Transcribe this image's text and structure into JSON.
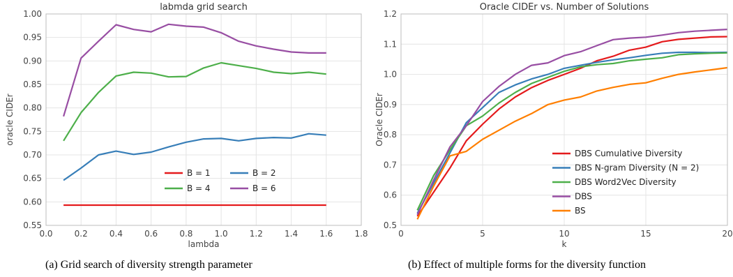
{
  "captions": {
    "a": "(a) Grid search of diversity strength parameter",
    "b": "(b) Effect of multiple forms for the diversity function"
  },
  "chart_data": [
    {
      "type": "line",
      "title": "labmda grid search",
      "xlabel": "lambda",
      "ylabel": "oracle CIDEr",
      "xlim": [
        0.0,
        1.8
      ],
      "ylim": [
        0.55,
        1.0
      ],
      "xticks": [
        0.0,
        0.2,
        0.4,
        0.6,
        0.8,
        1.0,
        1.2,
        1.4,
        1.6,
        1.8
      ],
      "yticks": [
        0.55,
        0.6,
        0.65,
        0.7,
        0.75,
        0.8,
        0.85,
        0.9,
        0.95,
        1.0
      ],
      "xtick_labels": [
        "0.0",
        "0.2",
        "0.4",
        "0.6",
        "0.8",
        "1.0",
        "1.2",
        "1.4",
        "1.6",
        "1.8"
      ],
      "ytick_labels": [
        "0.55",
        "0.60",
        "0.65",
        "0.70",
        "0.75",
        "0.80",
        "0.85",
        "0.90",
        "0.95",
        "1.00"
      ],
      "grid": true,
      "legend_position": "lower-center, two columns",
      "x": [
        0.1,
        0.2,
        0.3,
        0.4,
        0.5,
        0.6,
        0.7,
        0.8,
        0.9,
        1.0,
        1.1,
        1.2,
        1.3,
        1.4,
        1.5,
        1.6
      ],
      "series": [
        {
          "name": "B = 1",
          "color": "#e41a1c",
          "values": [
            0.593,
            0.593,
            0.593,
            0.593,
            0.593,
            0.593,
            0.593,
            0.593,
            0.593,
            0.593,
            0.593,
            0.593,
            0.593,
            0.593,
            0.593,
            0.593
          ]
        },
        {
          "name": "B = 2",
          "color": "#377eb8",
          "values": [
            0.646,
            0.672,
            0.7,
            0.708,
            0.701,
            0.706,
            0.717,
            0.727,
            0.734,
            0.735,
            0.73,
            0.735,
            0.737,
            0.736,
            0.745,
            0.742
          ]
        },
        {
          "name": "B = 4",
          "color": "#4daf4a",
          "values": [
            0.73,
            0.79,
            0.833,
            0.868,
            0.876,
            0.874,
            0.866,
            0.867,
            0.885,
            0.896,
            0.89,
            0.884,
            0.876,
            0.873,
            0.876,
            0.872
          ]
        },
        {
          "name": "B = 6",
          "color": "#984ea3",
          "values": [
            0.782,
            0.906,
            0.942,
            0.977,
            0.967,
            0.962,
            0.978,
            0.974,
            0.972,
            0.96,
            0.942,
            0.932,
            0.925,
            0.919,
            0.917,
            0.917
          ]
        }
      ]
    },
    {
      "type": "line",
      "title": "Oracle CIDEr vs. Number of Solutions",
      "xlabel": "k",
      "ylabel": "Oracle CIDEr",
      "xlim": [
        0,
        20
      ],
      "ylim": [
        0.5,
        1.2
      ],
      "xticks": [
        0,
        5,
        10,
        15,
        20
      ],
      "yticks": [
        0.5,
        0.6,
        0.7,
        0.8,
        0.9,
        1.0,
        1.1,
        1.2
      ],
      "xtick_labels": [
        "0",
        "5",
        "10",
        "15",
        "20"
      ],
      "ytick_labels": [
        "0.5",
        "0.6",
        "0.7",
        "0.8",
        "0.9",
        "1.0",
        "1.1",
        "1.2"
      ],
      "grid": true,
      "legend_position": "lower-right",
      "x": [
        1,
        2,
        3,
        4,
        5,
        6,
        7,
        8,
        9,
        10,
        11,
        12,
        13,
        14,
        15,
        16,
        17,
        18,
        19,
        20
      ],
      "series": [
        {
          "name": "DBS Cumulative Diversity",
          "color": "#e41a1c",
          "values": [
            0.53,
            0.61,
            0.69,
            0.78,
            0.835,
            0.885,
            0.925,
            0.956,
            0.98,
            1.0,
            1.02,
            1.045,
            1.06,
            1.08,
            1.09,
            1.108,
            1.116,
            1.12,
            1.124,
            1.125
          ]
        },
        {
          "name": "DBS N-gram Diversity (N = 2)",
          "color": "#377eb8",
          "values": [
            0.54,
            0.64,
            0.74,
            0.84,
            0.89,
            0.94,
            0.965,
            0.985,
            1.0,
            1.02,
            1.03,
            1.04,
            1.048,
            1.055,
            1.063,
            1.07,
            1.073,
            1.073,
            1.072,
            1.073
          ]
        },
        {
          "name": "DBS Word2Vec Diversity",
          "color": "#4daf4a",
          "values": [
            0.55,
            0.665,
            0.75,
            0.83,
            0.862,
            0.905,
            0.94,
            0.97,
            0.99,
            1.01,
            1.025,
            1.032,
            1.036,
            1.045,
            1.05,
            1.055,
            1.065,
            1.068,
            1.07,
            1.071
          ]
        },
        {
          "name": "DBS",
          "color": "#984ea3",
          "values": [
            0.535,
            0.65,
            0.76,
            0.83,
            0.91,
            0.96,
            1.0,
            1.03,
            1.038,
            1.062,
            1.075,
            1.095,
            1.115,
            1.12,
            1.123,
            1.13,
            1.138,
            1.143,
            1.146,
            1.149
          ]
        },
        {
          "name": "BS",
          "color": "#ff7f00",
          "values": [
            0.52,
            0.63,
            0.73,
            0.745,
            0.785,
            0.815,
            0.845,
            0.87,
            0.9,
            0.915,
            0.925,
            0.945,
            0.957,
            0.967,
            0.972,
            0.987,
            1.0,
            1.008,
            1.015,
            1.022
          ]
        }
      ]
    }
  ]
}
